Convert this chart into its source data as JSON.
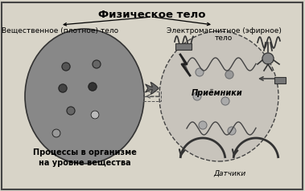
{
  "title": "Физическое тело",
  "label_left": "Вещественное (плотное) тело",
  "label_right_1": "Электромагнитное (эфирное)",
  "label_right_2": "тело",
  "label_receivers": "Приёмники",
  "label_bottom_left_1": "Процессы в организме",
  "label_bottom_left_2": "на уровне вещества",
  "label_sensors": "Датчики",
  "bg_color": "#d8d4c8",
  "border_color": "#444444",
  "title_fontsize": 9.5,
  "label_fontsize": 6.5,
  "receiver_fontsize": 7.0
}
